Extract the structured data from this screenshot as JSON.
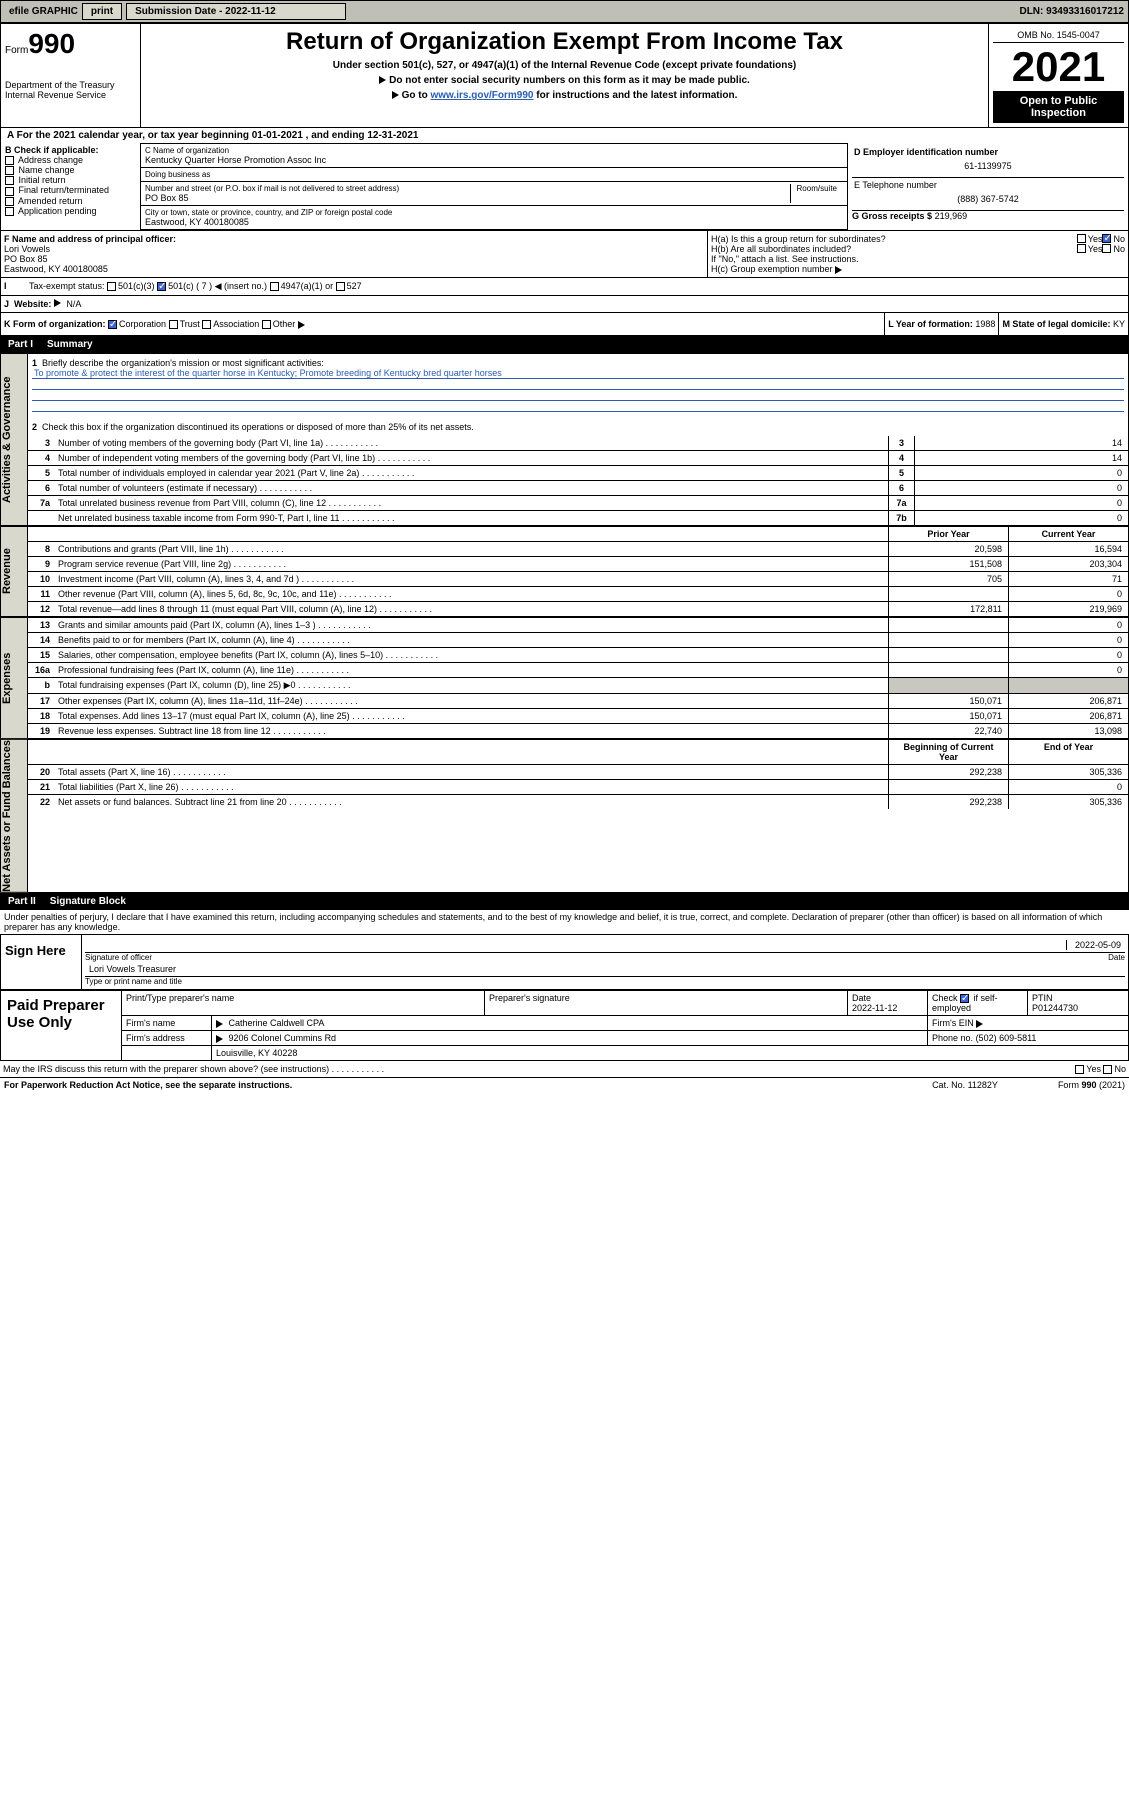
{
  "topbar": {
    "efile": "efile GRAPHIC",
    "print": "print",
    "subdate_lbl": "Submission Date - 2022-11-12",
    "dln": "DLN: 93493316017212"
  },
  "hdr": {
    "form_small": "Form",
    "form_big": "990",
    "dept": "Department of the Treasury",
    "irs": "Internal Revenue Service",
    "title": "Return of Organization Exempt From Income Tax",
    "sub1": "Under section 501(c), 527, or 4947(a)(1) of the Internal Revenue Code (except private foundations)",
    "sub2": "Do not enter social security numbers on this form as it may be made public.",
    "sub3_pre": "Go to ",
    "sub3_link": "www.irs.gov/Form990",
    "sub3_post": " for instructions and the latest information.",
    "omb": "OMB No. 1545-0047",
    "year": "2021",
    "public": "Open to Public Inspection"
  },
  "period": {
    "text": "A For the 2021 calendar year, or tax year beginning 01-01-2021   , and ending 12-31-2021"
  },
  "boxB": {
    "hdr": "B Check if applicable:",
    "items": [
      "Address change",
      "Name change",
      "Initial return",
      "Final return/terminated",
      "Amended return",
      "Application pending"
    ]
  },
  "boxC": {
    "name_lbl": "C Name of organization",
    "name": "Kentucky Quarter Horse Promotion Assoc Inc",
    "dba_lbl": "Doing business as",
    "addr_lbl": "Number and street (or P.O. box if mail is not delivered to street address)",
    "room_lbl": "Room/suite",
    "addr": "PO Box 85",
    "city_lbl": "City or town, state or province, country, and ZIP or foreign postal code",
    "city": "Eastwood, KY  400180085"
  },
  "boxD": {
    "lbl": "D Employer identification number",
    "val": "61-1139975"
  },
  "boxE": {
    "lbl": "E Telephone number",
    "val": "(888) 367-5742"
  },
  "boxG": {
    "lbl": "G Gross receipts $",
    "val": "219,969"
  },
  "boxF": {
    "lbl": "F Name and address of principal officer:",
    "name": "Lori Vowels",
    "addr1": "PO Box 85",
    "addr2": "Eastwood, KY  400180085"
  },
  "boxH": {
    "a": "H(a)  Is this a group return for subordinates?",
    "b": "H(b)  Are all subordinates included?",
    "b_note": "If \"No,\" attach a list. See instructions.",
    "c": "H(c)  Group exemption number",
    "yes": "Yes",
    "no": "No"
  },
  "boxI": {
    "lbl": "Tax-exempt status:",
    "o1": "501(c)(3)",
    "o2": "501(c) ( 7 )",
    "o2b": "(insert no.)",
    "o3": "4947(a)(1) or",
    "o4": "527"
  },
  "boxJ": {
    "lbl": "Website:",
    "val": "N/A"
  },
  "boxK": {
    "lbl": "K Form of organization:",
    "o1": "Corporation",
    "o2": "Trust",
    "o3": "Association",
    "o4": "Other"
  },
  "boxL": {
    "lbl": "L Year of formation:",
    "val": "1988"
  },
  "boxM": {
    "lbl": "M State of legal domicile:",
    "val": "KY"
  },
  "parts": {
    "p1": "Part I",
    "p1t": "Summary",
    "p2": "Part II",
    "p2t": "Signature Block"
  },
  "side_labels": {
    "gov": "Activities & Governance",
    "rev": "Revenue",
    "exp": "Expenses",
    "bal": "Net Assets or Fund Balances"
  },
  "p1": {
    "l1": "Briefly describe the organization's mission or most significant activities:",
    "mission": "To promote & protect the interest of the quarter horse in Kentucky; Promote breeding of Kentucky bred quarter horses",
    "l2": "Check this box        if the organization discontinued its operations or disposed of more than 25% of its net assets.",
    "l3": "Number of voting members of the governing body (Part VI, line 1a)",
    "l4": "Number of independent voting members of the governing body (Part VI, line 1b)",
    "l5": "Total number of individuals employed in calendar year 2021 (Part V, line 2a)",
    "l6": "Total number of volunteers (estimate if necessary)",
    "l7a": "Total unrelated business revenue from Part VIII, column (C), line 12",
    "l7b": "Net unrelated business taxable income from Form 990-T, Part I, line 11",
    "v3": "14",
    "v4": "14",
    "v5": "0",
    "v6": "0",
    "v7a": "0",
    "v7b": "0",
    "prior": "Prior Year",
    "curr": "Current Year",
    "rows_rev": [
      {
        "n": "8",
        "t": "Contributions and grants (Part VIII, line 1h)",
        "p": "20,598",
        "c": "16,594"
      },
      {
        "n": "9",
        "t": "Program service revenue (Part VIII, line 2g)",
        "p": "151,508",
        "c": "203,304"
      },
      {
        "n": "10",
        "t": "Investment income (Part VIII, column (A), lines 3, 4, and 7d )",
        "p": "705",
        "c": "71"
      },
      {
        "n": "11",
        "t": "Other revenue (Part VIII, column (A), lines 5, 6d, 8c, 9c, 10c, and 11e)",
        "p": "",
        "c": "0"
      },
      {
        "n": "12",
        "t": "Total revenue—add lines 8 through 11 (must equal Part VIII, column (A), line 12)",
        "p": "172,811",
        "c": "219,969"
      }
    ],
    "rows_exp": [
      {
        "n": "13",
        "t": "Grants and similar amounts paid (Part IX, column (A), lines 1–3 )",
        "p": "",
        "c": "0"
      },
      {
        "n": "14",
        "t": "Benefits paid to or for members (Part IX, column (A), line 4)",
        "p": "",
        "c": "0"
      },
      {
        "n": "15",
        "t": "Salaries, other compensation, employee benefits (Part IX, column (A), lines 5–10)",
        "p": "",
        "c": "0"
      },
      {
        "n": "16a",
        "t": "Professional fundraising fees (Part IX, column (A), line 11e)",
        "p": "",
        "c": "0"
      },
      {
        "n": "b",
        "t": "Total fundraising expenses (Part IX, column (D), line 25) ▶0",
        "p": "GRAY",
        "c": "GRAY"
      },
      {
        "n": "17",
        "t": "Other expenses (Part IX, column (A), lines 11a–11d, 11f–24e)",
        "p": "150,071",
        "c": "206,871"
      },
      {
        "n": "18",
        "t": "Total expenses. Add lines 13–17 (must equal Part IX, column (A), line 25)",
        "p": "150,071",
        "c": "206,871"
      },
      {
        "n": "19",
        "t": "Revenue less expenses. Subtract line 18 from line 12",
        "p": "22,740",
        "c": "13,098"
      }
    ],
    "boy": "Beginning of Current Year",
    "eoy": "End of Year",
    "rows_bal": [
      {
        "n": "20",
        "t": "Total assets (Part X, line 16)",
        "p": "292,238",
        "c": "305,336"
      },
      {
        "n": "21",
        "t": "Total liabilities (Part X, line 26)",
        "p": "",
        "c": "0"
      },
      {
        "n": "22",
        "t": "Net assets or fund balances. Subtract line 21 from line 20",
        "p": "292,238",
        "c": "305,336"
      }
    ]
  },
  "p2": {
    "decl": "Under penalties of perjury, I declare that I have examined this return, including accompanying schedules and statements, and to the best of my knowledge and belief, it is true, correct, and complete. Declaration of preparer (other than officer) is based on all information of which preparer has any knowledge.",
    "sign_here": "Sign Here",
    "sig_officer": "Signature of officer",
    "date": "Date",
    "datev": "2022-05-09",
    "name_title": "Lori Vowels  Treasurer",
    "name_lbl": "Type or print name and title",
    "prep": "Paid Preparer Use Only",
    "h1": "Print/Type preparer's name",
    "h2": "Preparer's signature",
    "h3": "Date",
    "h3v": "2022-11-12",
    "h4": "Check",
    "h4b": "if self-employed",
    "h5": "PTIN",
    "h5v": "P01244730",
    "firm_name_lbl": "Firm's name",
    "firm_name": "Catherine Caldwell CPA",
    "firm_ein_lbl": "Firm's EIN",
    "firm_addr_lbl": "Firm's address",
    "firm_addr1": "9206 Colonel Cummins Rd",
    "firm_addr2": "Louisville, KY  40228",
    "phone_lbl": "Phone no.",
    "phone": "(502) 609-5811",
    "discuss": "May the IRS discuss this return with the preparer shown above? (see instructions)"
  },
  "foot": {
    "l": "For Paperwork Reduction Act Notice, see the separate instructions.",
    "m": "Cat. No. 11282Y",
    "r": "Form 990 (2021)"
  },
  "colors": {
    "topbar_bg": "#bfbfb5",
    "btn_bg": "#d8d8cd",
    "link": "#2a5db0",
    "check": "#3a66d6"
  }
}
